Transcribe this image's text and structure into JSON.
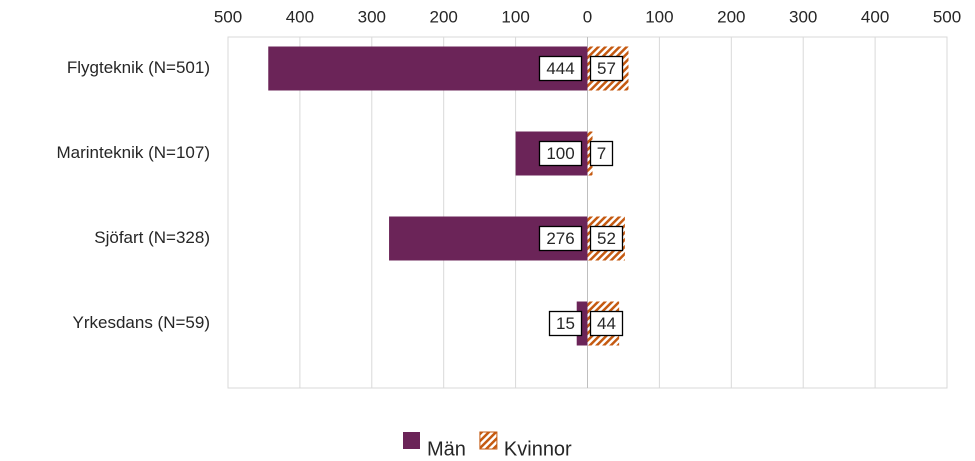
{
  "chart_data": {
    "type": "bar",
    "orientation": "horizontal",
    "categories": [
      "Flygteknik (N=501)",
      "Marinteknik (N=107)",
      "Sjöfart (N=328)",
      "Yrkesdans (N=59)"
    ],
    "series": [
      {
        "name": "Män",
        "color": "#6b2458",
        "values": [
          -444,
          -100,
          -276,
          -15
        ],
        "value_labels": [
          "444",
          "100",
          "276",
          "15"
        ]
      },
      {
        "name": "Kvinnor",
        "color": "#c55a11",
        "values": [
          57,
          7,
          52,
          44
        ]
      }
    ],
    "xlim": [
      -500,
      500
    ],
    "xticks": [
      {
        "value": -500,
        "label": "500"
      },
      {
        "value": -400,
        "label": "400"
      },
      {
        "value": -300,
        "label": "300"
      },
      {
        "value": -200,
        "label": "200"
      },
      {
        "value": -100,
        "label": "100"
      },
      0,
      100,
      200,
      300,
      400,
      500
    ],
    "grid": true,
    "legend": "bottom"
  }
}
